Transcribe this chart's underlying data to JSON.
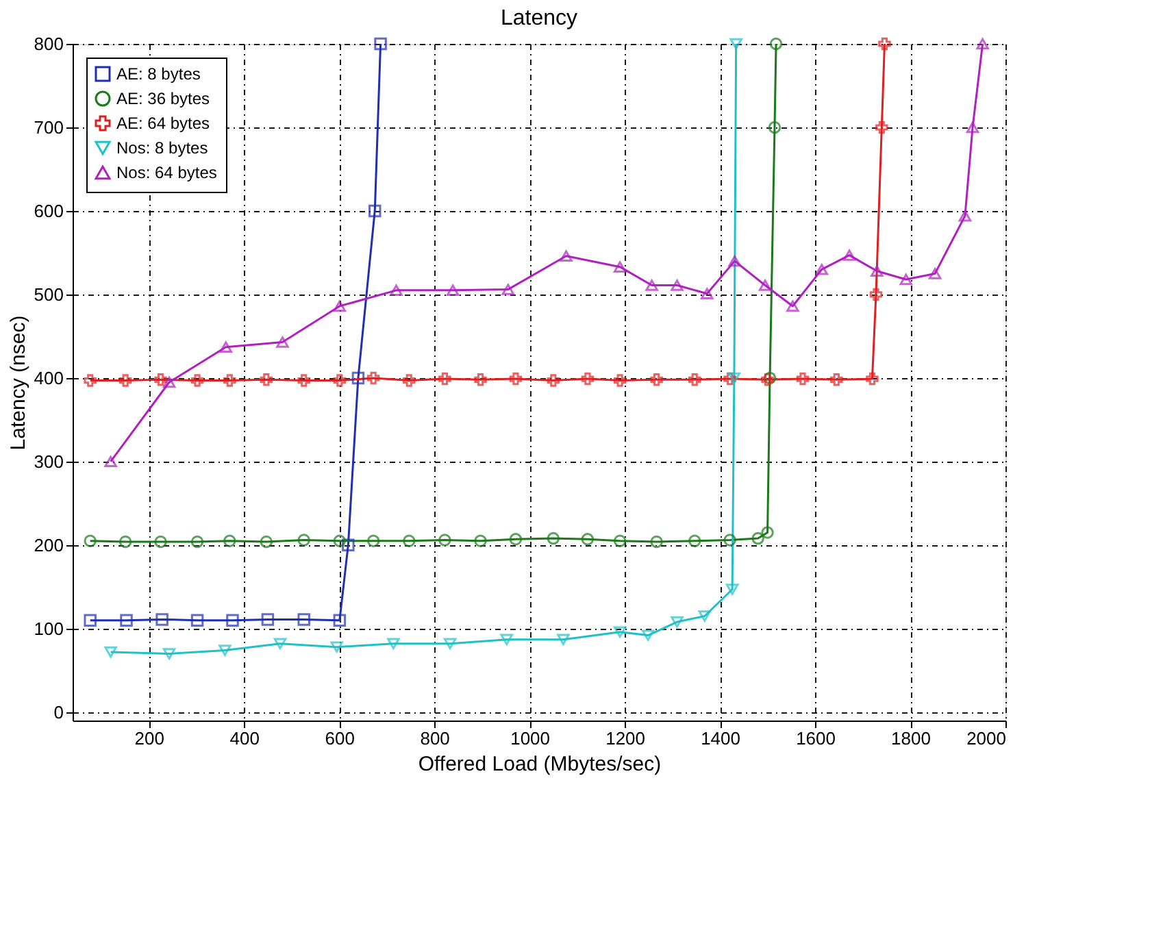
{
  "chart_data": {
    "type": "line",
    "title": "Latency",
    "xlabel": "Offered Load (Mbytes/sec)",
    "ylabel": "Latency (nsec)",
    "xlim": [
      40,
      2000
    ],
    "ylim": [
      -10,
      800
    ],
    "xticks": [
      200,
      400,
      600,
      800,
      1000,
      1200,
      1400,
      1600,
      1800,
      2000
    ],
    "yticks": [
      0,
      100,
      200,
      300,
      400,
      500,
      600,
      700,
      800
    ],
    "grid": true,
    "legend": "top left",
    "line_style": "solid",
    "series": [
      {
        "name": "AE: 8 bytes",
        "color": "#1f2fb0",
        "marker": "square",
        "x": [
          77,
          153,
          228,
          302,
          376,
          450,
          526,
          601,
          619,
          640,
          675,
          687
        ],
        "values": [
          110,
          110,
          111,
          110,
          110,
          111,
          111,
          110,
          200,
          400,
          600,
          800
        ]
      },
      {
        "name": "AE: 36 bytes",
        "color": "#1a7a1a",
        "marker": "circle",
        "x": [
          77,
          151,
          225,
          302,
          370,
          447,
          526,
          601,
          672,
          747,
          822,
          897,
          971,
          1050,
          1122,
          1190,
          1267,
          1347,
          1421,
          1480,
          1500,
          1505,
          1515,
          1518
        ],
        "values": [
          205,
          204,
          204,
          204,
          205,
          204,
          206,
          205,
          205,
          205,
          206,
          205,
          207,
          208,
          207,
          205,
          204,
          205,
          206,
          208,
          215,
          400,
          700,
          800
        ]
      },
      {
        "name": "AE: 64 bytes",
        "color": "#e02020",
        "marker": "cross",
        "x": [
          77,
          151,
          225,
          302,
          370,
          447,
          526,
          601,
          672,
          747,
          822,
          897,
          971,
          1050,
          1122,
          1190,
          1267,
          1347,
          1421,
          1500,
          1574,
          1645,
          1720,
          1728,
          1740,
          1746
        ],
        "values": [
          397,
          397,
          398,
          397,
          397,
          398,
          397,
          397,
          400,
          397,
          399,
          398,
          399,
          397,
          399,
          397,
          398,
          398,
          399,
          398,
          399,
          398,
          399,
          500,
          700,
          800
        ]
      },
      {
        "name": "Nos: 8 bytes",
        "color": "#20c0c8",
        "marker": "triangle-down",
        "x": [
          120,
          243,
          360,
          476,
          595,
          714,
          833,
          952,
          1071,
          1190,
          1249,
          1310,
          1368,
          1426,
          1430,
          1434
        ],
        "values": [
          72,
          70,
          74,
          82,
          78,
          82,
          82,
          87,
          87,
          96,
          92,
          108,
          115,
          147,
          400,
          800
        ]
      },
      {
        "name": "Nos: 64 bytes",
        "color": "#b020c0",
        "marker": "triangle",
        "x": [
          120,
          243,
          362,
          481,
          601,
          720,
          839,
          955,
          1077,
          1190,
          1257,
          1310,
          1373,
          1431,
          1495,
          1553,
          1614,
          1672,
          1730,
          1791,
          1852,
          1915,
          1931,
          1952
        ],
        "values": [
          300,
          395,
          437,
          443,
          486,
          505,
          505,
          506,
          546,
          533,
          511,
          511,
          501,
          540,
          511,
          486,
          530,
          547,
          528,
          518,
          525,
          594,
          700,
          800
        ]
      }
    ]
  }
}
